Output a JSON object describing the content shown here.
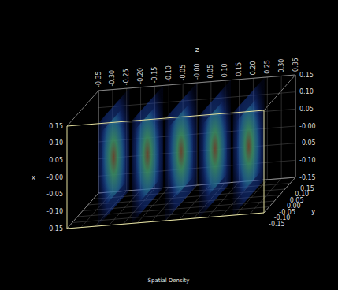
{
  "chart_data": {
    "type": "volume",
    "title": "Spatial Density",
    "xlabel": "x",
    "ylabel": "y",
    "zlabel": "z",
    "xlim": [
      -0.15,
      0.15
    ],
    "ylim": [
      -0.15,
      0.15
    ],
    "zlim": [
      -0.35,
      0.35
    ],
    "xticks": [
      -0.15,
      {
        "value": -0.1,
        "label": "-0.10"
      },
      -0.05,
      {
        "value": 0,
        "label": "-0.00"
      },
      0.05,
      {
        "value": 0.1,
        "label": "0.10"
      },
      0.15
    ],
    "yticks": [
      -0.15,
      {
        "value": -0.1,
        "label": "-0.10"
      },
      -0.05,
      {
        "value": 0,
        "label": "-0.00"
      },
      0.05,
      {
        "value": 0.1,
        "label": "0.10"
      },
      0.15
    ],
    "zticks": [
      -0.35,
      {
        "value": -0.3,
        "label": "-0.30"
      },
      -0.25,
      {
        "value": -0.2,
        "label": "-0.20"
      },
      -0.15,
      {
        "value": -0.1,
        "label": "-0.10"
      },
      -0.05,
      {
        "value": 0,
        "label": "-0.00"
      },
      0.05,
      {
        "value": 0.1,
        "label": "0.10"
      },
      0.15,
      {
        "value": 0.2,
        "label": "0.20"
      },
      0.25,
      {
        "value": 0.3,
        "label": "0.30"
      },
      0.35
    ],
    "slices": [
      {
        "z": -0.24
      },
      {
        "z": -0.12
      },
      {
        "z": 0
      },
      {
        "z": 0.12
      },
      {
        "z": 0.24
      }
    ],
    "grid": true
  }
}
